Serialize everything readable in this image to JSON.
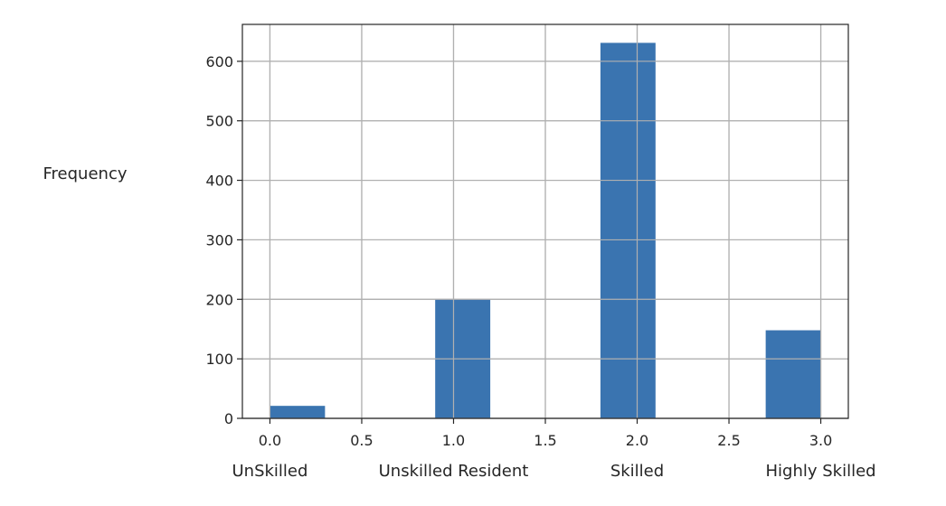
{
  "chart_data": {
    "type": "bar",
    "title": "",
    "xlabel": "",
    "ylabel": "Frequency",
    "xlim": [
      -0.15,
      3.15
    ],
    "ylim": [
      0,
      662
    ],
    "grid": true,
    "bar_color": "#3a74b0",
    "grid_color": "#b0b0b0",
    "bins": [
      {
        "x0": 0.0,
        "x1": 0.3,
        "value": 21
      },
      {
        "x0": 0.9,
        "x1": 1.2,
        "value": 200
      },
      {
        "x0": 1.8,
        "x1": 2.1,
        "value": 631
      },
      {
        "x0": 2.7,
        "x1": 3.0,
        "value": 148
      }
    ],
    "x_ticks": [
      {
        "value": 0.0,
        "label": "0.0"
      },
      {
        "value": 0.5,
        "label": "0.5"
      },
      {
        "value": 1.0,
        "label": "1.0"
      },
      {
        "value": 1.5,
        "label": "1.5"
      },
      {
        "value": 2.0,
        "label": "2.0"
      },
      {
        "value": 2.5,
        "label": "2.5"
      },
      {
        "value": 3.0,
        "label": "3.0"
      }
    ],
    "y_ticks": [
      {
        "value": 0,
        "label": "0"
      },
      {
        "value": 100,
        "label": "100"
      },
      {
        "value": 200,
        "label": "200"
      },
      {
        "value": 300,
        "label": "300"
      },
      {
        "value": 400,
        "label": "400"
      },
      {
        "value": 500,
        "label": "500"
      },
      {
        "value": 600,
        "label": "600"
      }
    ],
    "category_labels": [
      {
        "value": 0.0,
        "label": "UnSkilled"
      },
      {
        "value": 1.0,
        "label": "Unskilled Resident"
      },
      {
        "value": 2.0,
        "label": "Skilled"
      },
      {
        "value": 3.0,
        "label": "Highly Skilled"
      }
    ]
  }
}
